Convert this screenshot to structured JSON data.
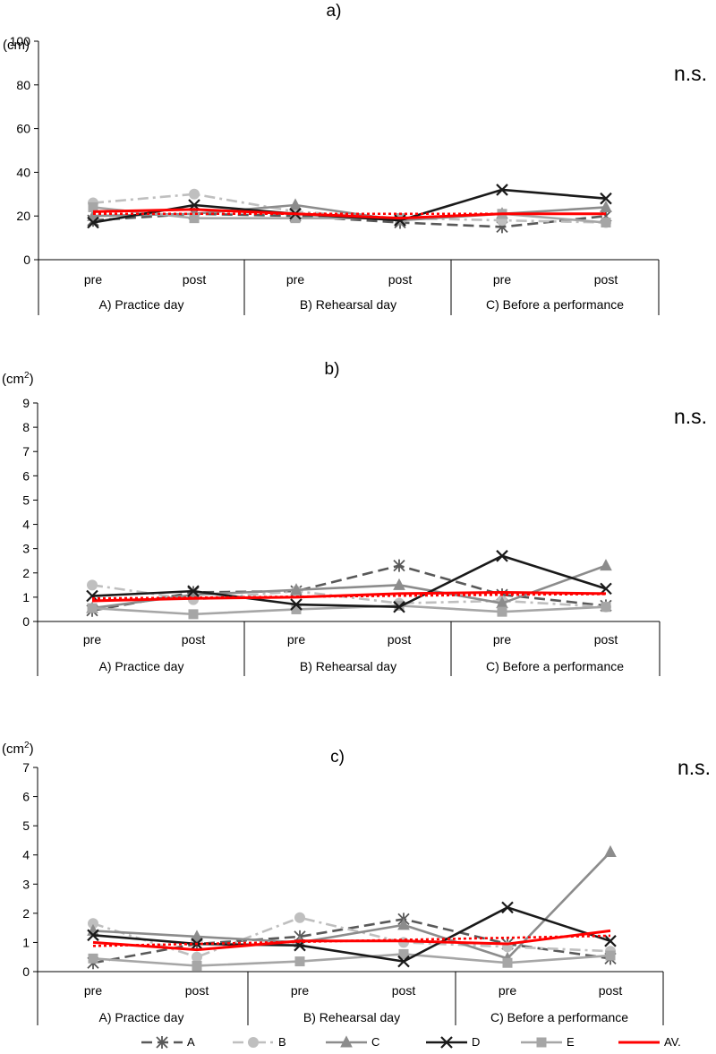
{
  "chart_data": [
    {
      "type": "line",
      "panel_label": "a)",
      "unit": "(cm)",
      "unit_sup": "",
      "significance": "n.s.",
      "ylim": [
        0,
        100
      ],
      "yticks": [
        "0",
        "20",
        "40",
        "60",
        "80",
        "100"
      ],
      "x_labels": [
        "pre",
        "post",
        "pre",
        "post",
        "pre",
        "post"
      ],
      "groups": [
        "A) Practice day",
        "B) Rehearsal day",
        "C) Before a performance"
      ],
      "series": [
        {
          "key": "A",
          "values": [
            18,
            21,
            20,
            17,
            15,
            20
          ]
        },
        {
          "key": "B",
          "values": [
            26,
            30,
            22,
            19,
            18,
            17
          ]
        },
        {
          "key": "C",
          "values": [
            20,
            21,
            25,
            18,
            21,
            24
          ]
        },
        {
          "key": "D",
          "values": [
            17,
            25,
            21,
            18,
            32,
            28
          ]
        },
        {
          "key": "E",
          "values": [
            24,
            19,
            19,
            19,
            21,
            17
          ]
        },
        {
          "key": "AV.",
          "values": [
            22,
            23,
            21,
            19,
            21,
            21
          ]
        },
        {
          "key": "AV-trend",
          "values": [
            21,
            21,
            21,
            21,
            21,
            21
          ]
        }
      ]
    },
    {
      "type": "line",
      "panel_label": "b)",
      "unit": "(cm",
      "unit_sup": "2",
      "significance": "n.s.",
      "ylim": [
        0,
        9
      ],
      "yticks": [
        "0",
        "1",
        "2",
        "3",
        "4",
        "5",
        "6",
        "7",
        "8",
        "9"
      ],
      "x_labels": [
        "pre",
        "post",
        "pre",
        "post",
        "pre",
        "post"
      ],
      "groups": [
        "A) Practice day",
        "B) Rehearsal day",
        "C) Before a performance"
      ],
      "series": [
        {
          "key": "A",
          "values": [
            0.45,
            1.2,
            1.25,
            2.3,
            1.1,
            0.65
          ]
        },
        {
          "key": "B",
          "values": [
            1.5,
            0.9,
            1.25,
            0.75,
            0.85,
            0.6
          ]
        },
        {
          "key": "C",
          "values": [
            0.55,
            1.1,
            1.3,
            1.5,
            0.75,
            2.3
          ]
        },
        {
          "key": "D",
          "values": [
            1.05,
            1.25,
            0.7,
            0.6,
            2.7,
            1.35
          ]
        },
        {
          "key": "E",
          "values": [
            0.55,
            0.3,
            0.5,
            0.65,
            0.4,
            0.6
          ]
        },
        {
          "key": "AV.",
          "values": [
            0.85,
            0.95,
            1.0,
            1.15,
            1.2,
            1.15
          ]
        },
        {
          "key": "AV-trend",
          "values": [
            0.95,
            0.98,
            1.02,
            1.06,
            1.1,
            1.13
          ]
        }
      ]
    },
    {
      "type": "line",
      "panel_label": "c)",
      "unit": "(cm",
      "unit_sup": "2",
      "significance": "n.s.",
      "ylim": [
        0,
        7
      ],
      "yticks": [
        "0",
        "1",
        "2",
        "3",
        "4",
        "5",
        "6",
        "7"
      ],
      "x_labels": [
        "pre",
        "post",
        "pre",
        "post",
        "pre",
        "post"
      ],
      "groups": [
        "A) Practice day",
        "B) Rehearsal day",
        "C) Before a performance"
      ],
      "series": [
        {
          "key": "A",
          "values": [
            0.3,
            0.95,
            1.2,
            1.8,
            0.95,
            0.45
          ]
        },
        {
          "key": "B",
          "values": [
            1.65,
            0.5,
            1.85,
            1.0,
            0.85,
            0.7
          ]
        },
        {
          "key": "C",
          "values": [
            1.4,
            1.2,
            1.0,
            1.6,
            0.45,
            4.1
          ]
        },
        {
          "key": "D",
          "values": [
            1.25,
            0.95,
            0.9,
            0.35,
            2.2,
            1.05
          ]
        },
        {
          "key": "E",
          "values": [
            0.45,
            0.2,
            0.35,
            0.6,
            0.3,
            0.55
          ]
        },
        {
          "key": "AV.",
          "values": [
            1.0,
            0.75,
            1.05,
            1.05,
            0.95,
            1.4
          ]
        },
        {
          "key": "AV-trend",
          "values": [
            0.88,
            0.95,
            1.02,
            1.09,
            1.16,
            1.23
          ]
        }
      ]
    }
  ],
  "legend": [
    {
      "key": "A",
      "label": "A"
    },
    {
      "key": "B",
      "label": "B"
    },
    {
      "key": "C",
      "label": "C"
    },
    {
      "key": "D",
      "label": "D"
    },
    {
      "key": "E",
      "label": "E"
    },
    {
      "key": "AV.",
      "label": "AV."
    }
  ],
  "styles": {
    "A": {
      "color": "#595959",
      "marker": "asterisk",
      "dash": "dashed"
    },
    "B": {
      "color": "#bfbfbf",
      "marker": "circle",
      "dash": "dashdot"
    },
    "C": {
      "color": "#8c8c8c",
      "marker": "triangle",
      "dash": "solid"
    },
    "D": {
      "color": "#1a1a1a",
      "marker": "x",
      "dash": "solid"
    },
    "E": {
      "color": "#a6a6a6",
      "marker": "square",
      "dash": "solid"
    },
    "AV.": {
      "color": "#ff0000",
      "marker": "none",
      "dash": "solid"
    },
    "AV-trend": {
      "color": "#ff0000",
      "marker": "none",
      "dash": "dotted"
    }
  }
}
